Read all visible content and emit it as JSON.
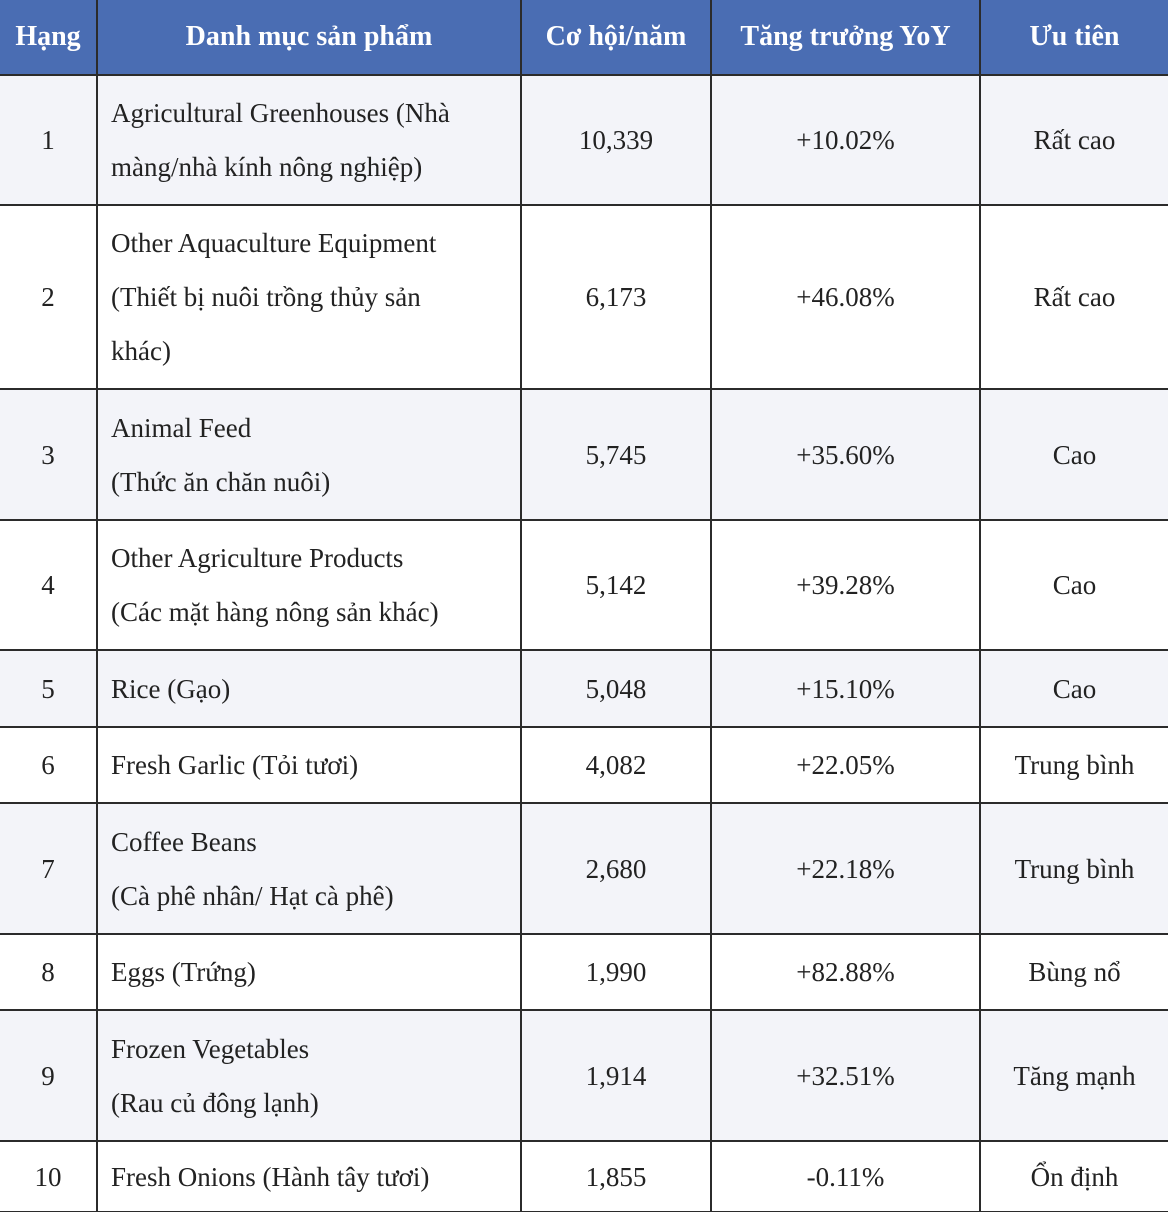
{
  "table": {
    "header": [
      "Hạng",
      "Danh mục sản phẩm",
      "Cơ hội/năm",
      "Tăng trưởng YoY",
      "Ưu tiên"
    ],
    "rows": [
      {
        "rank": 1,
        "product": [
          "Agricultural Greenhouses (Nhà",
          "màng/nhà kính nông nghiệp)"
        ],
        "opportunity": "10,339",
        "growth": "+10.02%",
        "priority": "Rất cao"
      },
      {
        "rank": 2,
        "product": [
          "Other Aquaculture Equipment",
          "(Thiết bị nuôi trồng thủy sản",
          "khác)"
        ],
        "opportunity": "6,173",
        "growth": "+46.08%",
        "priority": "Rất cao"
      },
      {
        "rank": 3,
        "product": [
          "Animal Feed",
          "(Thức ăn chăn nuôi)"
        ],
        "opportunity": "5,745",
        "growth": "+35.60%",
        "priority": "Cao"
      },
      {
        "rank": 4,
        "product": [
          "Other Agriculture Products",
          "(Các mặt hàng nông sản khác)"
        ],
        "opportunity": "5,142",
        "growth": "+39.28%",
        "priority": "Cao"
      },
      {
        "rank": 5,
        "product": [
          "Rice (Gạo)"
        ],
        "opportunity": "5,048",
        "growth": "+15.10%",
        "priority": "Cao"
      },
      {
        "rank": 6,
        "product": [
          "Fresh Garlic (Tỏi tươi)"
        ],
        "opportunity": "4,082",
        "growth": "+22.05%",
        "priority": "Trung bình"
      },
      {
        "rank": 7,
        "product": [
          "Coffee Beans",
          "(Cà phê nhân/ Hạt cà phê)"
        ],
        "opportunity": "2,680",
        "growth": "+22.18%",
        "priority": "Trung bình"
      },
      {
        "rank": 8,
        "product": [
          "Eggs (Trứng)"
        ],
        "opportunity": "1,990",
        "growth": "+82.88%",
        "priority": "Bùng nổ"
      },
      {
        "rank": 9,
        "product": [
          "Frozen Vegetables",
          "(Rau củ đông lạnh)"
        ],
        "opportunity": "1,914",
        "growth": "+32.51%",
        "priority": "Tăng mạnh"
      },
      {
        "rank": 10,
        "product": [
          "Fresh Onions (Hành tây tươi)"
        ],
        "opportunity": "1,855",
        "growth": "-0.11%",
        "priority": "Ổn định"
      }
    ]
  }
}
